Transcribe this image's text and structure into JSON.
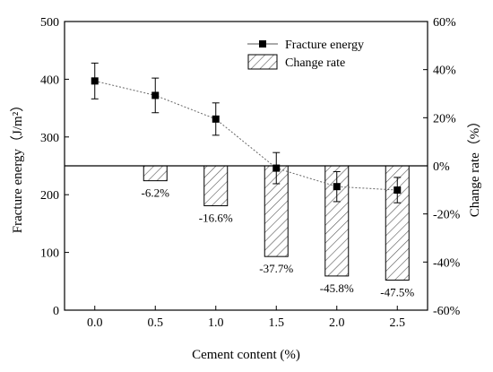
{
  "chart_data": {
    "type": "bar+line",
    "title": "",
    "xlabel": "Cement content (%)",
    "ylabel_left": "Fracture energy（J/m²）",
    "ylabel_right": "Change rate（%）",
    "x_ticks": [
      "0.0",
      "0.5",
      "1.0",
      "1.5",
      "2.0",
      "2.5"
    ],
    "x_values": [
      0.0,
      0.5,
      1.0,
      1.5,
      2.0,
      2.5
    ],
    "xlim": [
      -0.25,
      2.75
    ],
    "ylim_left": [
      0,
      500
    ],
    "ylim_right": [
      -60,
      60
    ],
    "y_ticks_left": [
      "0",
      "100",
      "200",
      "300",
      "400",
      "500"
    ],
    "y_ticks_right": [
      "-60%",
      "-40%",
      "-20%",
      "0%",
      "20%",
      "40%",
      "60%"
    ],
    "legend_position": "top-right",
    "series": [
      {
        "name": "Fracture energy",
        "type": "line",
        "axis": "left",
        "values": [
          397,
          372,
          331,
          246,
          214,
          208
        ],
        "error": [
          31,
          30,
          28,
          27,
          26,
          22
        ]
      },
      {
        "name": "Change rate",
        "type": "bar",
        "axis": "right",
        "pattern": "hatched",
        "values": [
          0,
          -6.2,
          -16.6,
          -37.7,
          -45.8,
          -47.5
        ],
        "labels": [
          "",
          "-6.2%",
          "-16.6%",
          "-37.7%",
          "-45.8%",
          "-47.5%"
        ]
      }
    ]
  }
}
